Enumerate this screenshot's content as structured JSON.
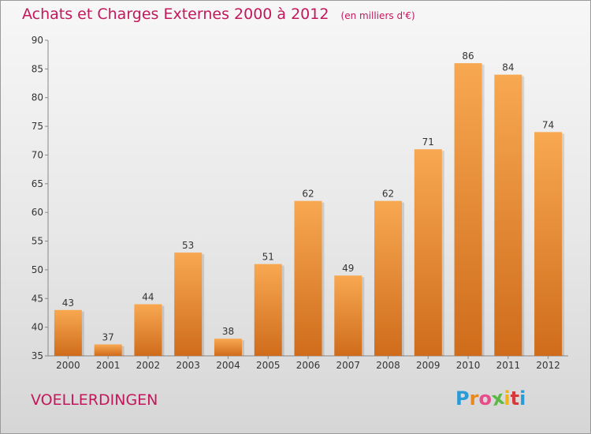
{
  "title": "Achats et Charges Externes 2000 à 2012",
  "unit": "(en milliers d'€)",
  "city": "VOELLERDINGEN",
  "logo": {
    "text": "Proxiti",
    "letter_colors": [
      "#2a9bd6",
      "#e8891e",
      "#e84c8a",
      "#5bb844",
      "#f2b318",
      "#d9383a",
      "#2a9bd6"
    ]
  },
  "colors": {
    "bar_top": "#f8a851",
    "bar_bottom": "#cf6c1b",
    "title": "#c2185b"
  },
  "chart_data": {
    "type": "bar",
    "categories": [
      "2000",
      "2001",
      "2002",
      "2003",
      "2004",
      "2005",
      "2006",
      "2007",
      "2008",
      "2009",
      "2010",
      "2011",
      "2012"
    ],
    "values": [
      43,
      37,
      44,
      53,
      38,
      51,
      62,
      49,
      62,
      71,
      86,
      84,
      74
    ],
    "yticks": [
      35,
      40,
      45,
      50,
      55,
      60,
      65,
      70,
      75,
      80,
      85,
      90
    ],
    "ylim": [
      35,
      90
    ],
    "grid": false,
    "data_labels": true
  }
}
